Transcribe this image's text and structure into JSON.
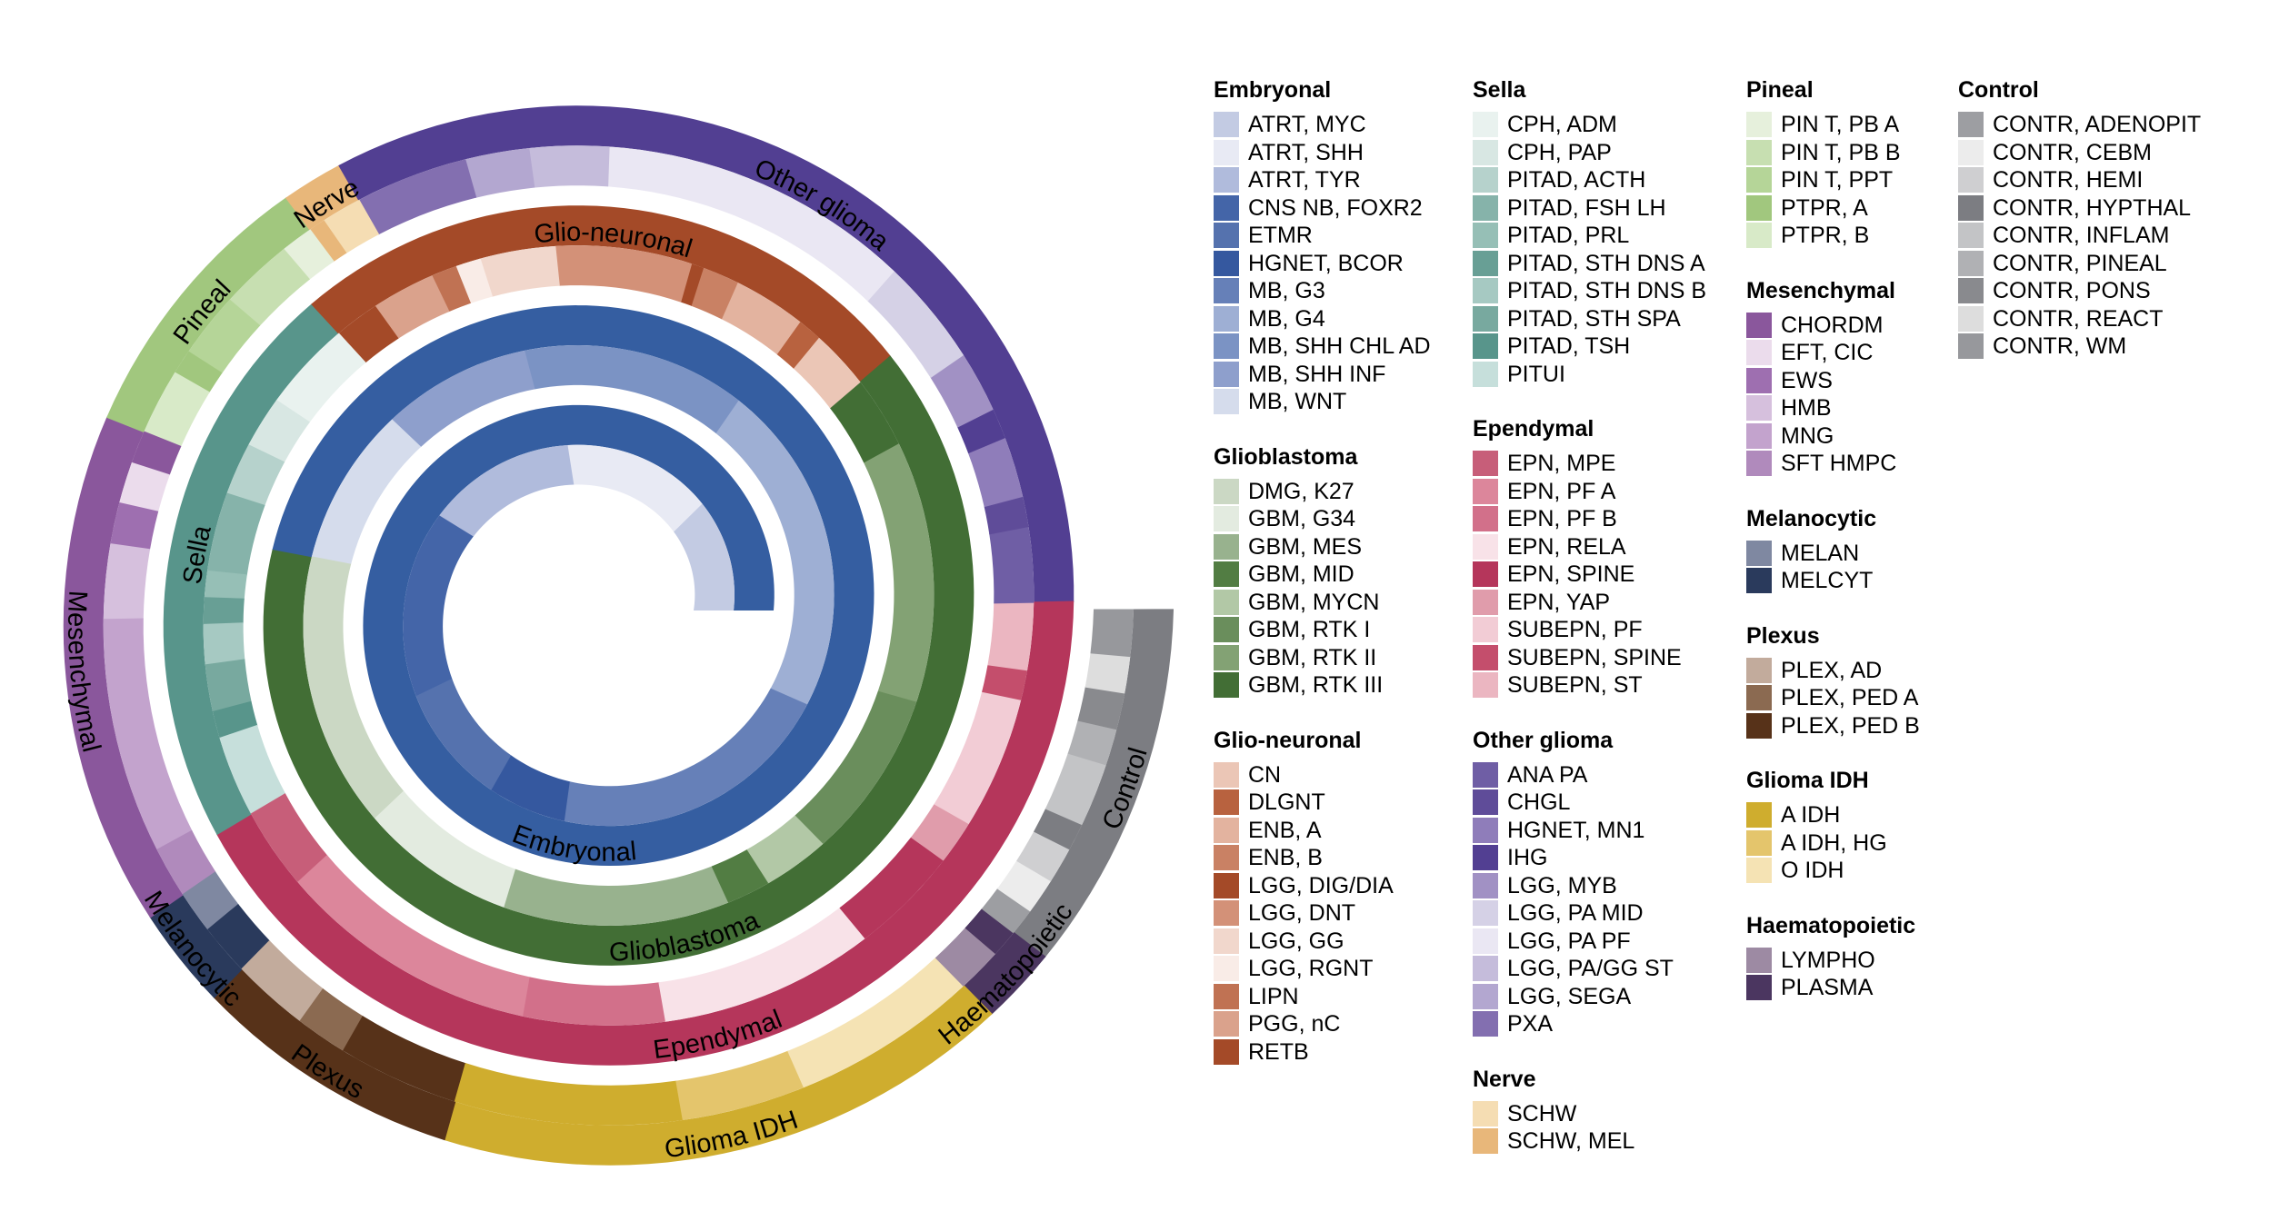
{
  "chart_data": {
    "type": "spiral-sunburst",
    "title": "",
    "direction": "counterclockwise from 3 o'clock, inner to outer",
    "total_turns": 4,
    "legend_placement": "right",
    "families": [
      {
        "name": "Embryonal",
        "color": "#355ea1",
        "subclasses": [
          {
            "name": "ATRT, MYC",
            "value": 45
          },
          {
            "name": "ATRT, SHH",
            "value": 55
          },
          {
            "name": "ATRT, TYR",
            "value": 50
          },
          {
            "name": "CNS NB, FOXR2",
            "value": 58
          },
          {
            "name": "ETMR",
            "value": 35
          },
          {
            "name": "HGNET, BCOR",
            "value": 22
          },
          {
            "name": "MB, G3",
            "value": 75
          },
          {
            "name": "MB, G4",
            "value": 80
          },
          {
            "name": "MB, SHH CHL AD",
            "value": 50
          },
          {
            "name": "MB, SHH INF",
            "value": 32
          },
          {
            "name": "MB, WNT",
            "value": 33
          }
        ]
      },
      {
        "name": "Glioblastoma",
        "color": "#426e35",
        "subclasses": [
          {
            "name": "DMG, K27",
            "value": 55
          },
          {
            "name": "GBM, G34",
            "value": 30
          },
          {
            "name": "GBM, MES",
            "value": 42
          },
          {
            "name": "GBM, MID",
            "value": 8
          },
          {
            "name": "GBM, MYCN",
            "value": 12
          },
          {
            "name": "GBM, RTK I",
            "value": 30
          },
          {
            "name": "GBM, RTK II",
            "value": 45
          },
          {
            "name": "GBM, RTK III",
            "value": 12
          }
        ]
      },
      {
        "name": "Glio-neuronal",
        "color": "#a44a28",
        "subclasses": [
          {
            "name": "CN",
            "value": 10
          },
          {
            "name": "DLGNT",
            "value": 4
          },
          {
            "name": "ENB, A",
            "value": 12
          },
          {
            "name": "ENB, B",
            "value": 6
          },
          {
            "name": "LGG, DIG/DIA",
            "value": 2
          },
          {
            "name": "LGG, DNT",
            "value": 22
          },
          {
            "name": "LGG, GG",
            "value": 12
          },
          {
            "name": "LGG, RGNT",
            "value": 4
          },
          {
            "name": "LIPN",
            "value": 4
          },
          {
            "name": "PGG, nC",
            "value": 10
          },
          {
            "name": "RETB",
            "value": 7
          }
        ]
      },
      {
        "name": "Sella",
        "color": "#58958b",
        "subclasses": [
          {
            "name": "CPH, ADM",
            "value": 14
          },
          {
            "name": "CPH, PAP",
            "value": 8
          },
          {
            "name": "PITAD, ACTH",
            "value": 8
          },
          {
            "name": "PITAD, FSH LH",
            "value": 12
          },
          {
            "name": "PITAD, PRL",
            "value": 4
          },
          {
            "name": "PITAD, STH DNS A",
            "value": 4
          },
          {
            "name": "PITAD, STH DNS B",
            "value": 6
          },
          {
            "name": "PITAD, STH SPA",
            "value": 7
          },
          {
            "name": "PITAD, TSH",
            "value": 4
          },
          {
            "name": "PITUI",
            "value": 12
          }
        ]
      },
      {
        "name": "Ependymal",
        "color": "#b5365b",
        "subclasses": [
          {
            "name": "EPN, MPE",
            "value": 12
          },
          {
            "name": "EPN, PF A",
            "value": 38
          },
          {
            "name": "EPN, PF B",
            "value": 20
          },
          {
            "name": "EPN, RELA",
            "value": 30
          },
          {
            "name": "EPN, SPINE",
            "value": 15
          },
          {
            "name": "EPN, YAP",
            "value": 6
          },
          {
            "name": "SUBEPN, PF",
            "value": 18
          },
          {
            "name": "SUBEPN, SPINE",
            "value": 4
          },
          {
            "name": "SUBEPN, ST",
            "value": 9
          }
        ]
      },
      {
        "name": "Other glioma",
        "color": "#523f92",
        "subclasses": [
          {
            "name": "ANA PA",
            "value": 10
          },
          {
            "name": "CHGL",
            "value": 4
          },
          {
            "name": "HGNET, MN1",
            "value": 8
          },
          {
            "name": "IHG",
            "value": 4
          },
          {
            "name": "LGG, MYB",
            "value": 8
          },
          {
            "name": "LGG, PA MID",
            "value": 14
          },
          {
            "name": "LGG, PA PF",
            "value": 40
          },
          {
            "name": "LGG, PA/GG ST",
            "value": 10
          },
          {
            "name": "LGG, SEGA",
            "value": 8
          },
          {
            "name": "PXA",
            "value": 14
          }
        ]
      },
      {
        "name": "Nerve",
        "color": "#e8b77a",
        "subclasses": [
          {
            "name": "SCHW",
            "value": 5
          },
          {
            "name": "SCHW, MEL",
            "value": 2
          }
        ]
      },
      {
        "name": "Pineal",
        "color": "#a1c77e",
        "subclasses": [
          {
            "name": "PIN T, PB A",
            "value": 4
          },
          {
            "name": "PIN T, PB B",
            "value": 9
          },
          {
            "name": "PIN T, PPT",
            "value": 8
          },
          {
            "name": "PTPR, A",
            "value": 3
          },
          {
            "name": "PTPR, B",
            "value": 8
          }
        ]
      },
      {
        "name": "Mesenchymal",
        "color": "#8a579c",
        "subclasses": [
          {
            "name": "CHORDM",
            "value": 4
          },
          {
            "name": "EFT, CIC",
            "value": 5
          },
          {
            "name": "EWS",
            "value": 5
          },
          {
            "name": "HMB",
            "value": 9
          },
          {
            "name": "MNG",
            "value": 28
          },
          {
            "name": "SFT HMPC",
            "value": 6
          }
        ]
      },
      {
        "name": "Melanocytic",
        "color": "#2a3a5c",
        "subclasses": [
          {
            "name": "MELAN",
            "value": 5
          },
          {
            "name": "MELCYT",
            "value": 6
          }
        ]
      },
      {
        "name": "Plexus",
        "color": "#573219",
        "subclasses": [
          {
            "name": "PLEX, AD",
            "value": 9
          },
          {
            "name": "PLEX, PED A",
            "value": 6
          },
          {
            "name": "PLEX, PED B",
            "value": 14
          }
        ]
      },
      {
        "name": "Glioma IDH",
        "color": "#cfad2e",
        "subclasses": [
          {
            "name": "A IDH",
            "value": 26
          },
          {
            "name": "A IDH, HG",
            "value": 14
          },
          {
            "name": "O IDH",
            "value": 21
          }
        ]
      },
      {
        "name": "Haematopoietic",
        "color": "#4b3660",
        "subclasses": [
          {
            "name": "LYMPHO",
            "value": 5
          },
          {
            "name": "PLASMA",
            "value": 3
          }
        ]
      },
      {
        "name": "Control",
        "color": "#7c7d82",
        "subclasses": [
          {
            "name": "CONTR, ADENOPIT",
            "value": 3
          },
          {
            "name": "CONTR, CEBM",
            "value": 4
          },
          {
            "name": "CONTR, HEMI",
            "value": 4
          },
          {
            "name": "CONTR, HYPTHAL",
            "value": 3
          },
          {
            "name": "CONTR, INFLAM",
            "value": 7
          },
          {
            "name": "CONTR, PINEAL",
            "value": 4
          },
          {
            "name": "CONTR, PONS",
            "value": 4
          },
          {
            "name": "CONTR, REACT",
            "value": 4
          },
          {
            "name": "CONTR, WM",
            "value": 5
          }
        ]
      }
    ]
  },
  "legend": {
    "columns": [
      [
        {
          "title": "Embryonal",
          "items": [
            {
              "label": "ATRT, MYC",
              "color": "#c3cbe3"
            },
            {
              "label": "ATRT, SHH",
              "color": "#e8eaf4"
            },
            {
              "label": "ATRT, TYR",
              "color": "#b0bbdc"
            },
            {
              "label": "CNS NB, FOXR2",
              "color": "#4465a8"
            },
            {
              "label": "ETMR",
              "color": "#5572ae"
            },
            {
              "label": "HGNET, BCOR",
              "color": "#35589f"
            },
            {
              "label": "MB, G3",
              "color": "#6680b8"
            },
            {
              "label": "MB, G4",
              "color": "#9eafd4"
            },
            {
              "label": "MB, SHH CHL AD",
              "color": "#7b93c4"
            },
            {
              "label": "MB, SHH INF",
              "color": "#8e9fcc"
            },
            {
              "label": "MB, WNT",
              "color": "#d5dcec"
            }
          ]
        },
        {
          "title": "Glioblastoma",
          "items": [
            {
              "label": "DMG, K27",
              "color": "#cbd8c4"
            },
            {
              "label": "GBM, G34",
              "color": "#e3ebe0"
            },
            {
              "label": "GBM, MES",
              "color": "#98b28e"
            },
            {
              "label": "GBM, MID",
              "color": "#527d43"
            },
            {
              "label": "GBM, MYCN",
              "color": "#b2c8a6"
            },
            {
              "label": "GBM, RTK I",
              "color": "#6a8e5c"
            },
            {
              "label": "GBM, RTK II",
              "color": "#83a274"
            },
            {
              "label": "GBM, RTK III",
              "color": "#426e35"
            }
          ]
        },
        {
          "title": "Glio-neuronal",
          "items": [
            {
              "label": "CN",
              "color": "#ebc6b6"
            },
            {
              "label": "DLGNT",
              "color": "#b8623f"
            },
            {
              "label": "ENB, A",
              "color": "#e3b39f"
            },
            {
              "label": "ENB, B",
              "color": "#c98164"
            },
            {
              "label": "LGG, DIG/DIA",
              "color": "#a44a28"
            },
            {
              "label": "LGG, DNT",
              "color": "#d39178"
            },
            {
              "label": "LGG, GG",
              "color": "#f1d7cc"
            },
            {
              "label": "LGG, RGNT",
              "color": "#f9ece7"
            },
            {
              "label": "LIPN",
              "color": "#c07253"
            },
            {
              "label": "PGG, nC",
              "color": "#daa28c"
            },
            {
              "label": "RETB",
              "color": "#a44a28"
            }
          ]
        }
      ],
      [
        {
          "title": "Sella",
          "items": [
            {
              "label": "CPH, ADM",
              "color": "#e9f2ef"
            },
            {
              "label": "CPH, PAP",
              "color": "#d8e7e3"
            },
            {
              "label": "PITAD, ACTH",
              "color": "#b6d2cc"
            },
            {
              "label": "PITAD, FSH LH",
              "color": "#86b3aa"
            },
            {
              "label": "PITAD, PRL",
              "color": "#96bfb6"
            },
            {
              "label": "PITAD, STH DNS A",
              "color": "#689f95"
            },
            {
              "label": "PITAD, STH DNS B",
              "color": "#a6c9c2"
            },
            {
              "label": "PITAD, STH SPA",
              "color": "#78a99f"
            },
            {
              "label": "PITAD, TSH",
              "color": "#58958b"
            },
            {
              "label": "PITUI",
              "color": "#c6dfdb"
            }
          ]
        },
        {
          "title": "Ependymal",
          "items": [
            {
              "label": "EPN, MPE",
              "color": "#c75e79"
            },
            {
              "label": "EPN, PF A",
              "color": "#dc869b"
            },
            {
              "label": "EPN, PF B",
              "color": "#d2708a"
            },
            {
              "label": "EPN, RELA",
              "color": "#f8e2e8"
            },
            {
              "label": "EPN, SPINE",
              "color": "#b5365b"
            },
            {
              "label": "EPN, YAP",
              "color": "#e09cab"
            },
            {
              "label": "SUBEPN, PF",
              "color": "#f2ccd5"
            },
            {
              "label": "SUBEPN, SPINE",
              "color": "#c44e6c"
            },
            {
              "label": "SUBEPN, ST",
              "color": "#ebb6c1"
            }
          ]
        },
        {
          "title": "Other glioma",
          "items": [
            {
              "label": "ANA PA",
              "color": "#6f5ea5"
            },
            {
              "label": "CHGL",
              "color": "#5f4c99"
            },
            {
              "label": "HGNET, MN1",
              "color": "#8f7dba"
            },
            {
              "label": "IHG",
              "color": "#523f92"
            },
            {
              "label": "LGG, MYB",
              "color": "#a191c4"
            },
            {
              "label": "LGG, PA MID",
              "color": "#d5d1e6"
            },
            {
              "label": "LGG, PA PF",
              "color": "#eae7f3"
            },
            {
              "label": "LGG, PA/GG ST",
              "color": "#c5bcdb"
            },
            {
              "label": "LGG, SEGA",
              "color": "#b3a7d0"
            },
            {
              "label": "PXA",
              "color": "#836fb0"
            }
          ]
        },
        {
          "title": "Nerve",
          "items": [
            {
              "label": "SCHW",
              "color": "#f5ddb3"
            },
            {
              "label": "SCHW, MEL",
              "color": "#e8b77a"
            }
          ]
        }
      ],
      [
        {
          "title": "Pineal",
          "items": [
            {
              "label": "PIN T, PB A",
              "color": "#e6f0dc"
            },
            {
              "label": "PIN T, PB B",
              "color": "#c7dfb1"
            },
            {
              "label": "PIN T, PPT",
              "color": "#b5d598"
            },
            {
              "label": "PTPR, A",
              "color": "#a1c77e"
            },
            {
              "label": "PTPR, B",
              "color": "#d8eac8"
            }
          ]
        },
        {
          "title": "Mesenchymal",
          "items": [
            {
              "label": "CHORDM",
              "color": "#8a579c"
            },
            {
              "label": "EFT, CIC",
              "color": "#ebdcec"
            },
            {
              "label": "EWS",
              "color": "#9e6fb0"
            },
            {
              "label": "HMB",
              "color": "#d6c0dd"
            },
            {
              "label": "MNG",
              "color": "#c3a3cd"
            },
            {
              "label": "SFT HMPC",
              "color": "#b08abc"
            }
          ]
        },
        {
          "title": "Melanocytic",
          "items": [
            {
              "label": "MELAN",
              "color": "#7f88a1"
            },
            {
              "label": "MELCYT",
              "color": "#2a3a5c"
            }
          ]
        },
        {
          "title": "Plexus",
          "items": [
            {
              "label": "PLEX, AD",
              "color": "#c2ab9c"
            },
            {
              "label": "PLEX, PED A",
              "color": "#8b6a51"
            },
            {
              "label": "PLEX, PED B",
              "color": "#573219"
            }
          ]
        },
        {
          "title": "Glioma IDH",
          "items": [
            {
              "label": "A IDH",
              "color": "#cfad2e"
            },
            {
              "label": "A IDH, HG",
              "color": "#e4c56c"
            },
            {
              "label": "O IDH",
              "color": "#f5e3b4"
            }
          ]
        },
        {
          "title": "Haematopoietic",
          "items": [
            {
              "label": "LYMPHO",
              "color": "#9d8aa3"
            },
            {
              "label": "PLASMA",
              "color": "#4b3660"
            }
          ]
        }
      ],
      [
        {
          "title": "Control",
          "items": [
            {
              "label": "CONTR, ADENOPIT",
              "color": "#9d9ea2"
            },
            {
              "label": "CONTR, CEBM",
              "color": "#ececec"
            },
            {
              "label": "CONTR, HEMI",
              "color": "#cfcfd1"
            },
            {
              "label": "CONTR, HYPTHAL",
              "color": "#7c7d82"
            },
            {
              "label": "CONTR, INFLAM",
              "color": "#c3c4c6"
            },
            {
              "label": "CONTR, PINEAL",
              "color": "#b0b1b4"
            },
            {
              "label": "CONTR, PONS",
              "color": "#898a8e"
            },
            {
              "label": "CONTR, REACT",
              "color": "#dddddd"
            },
            {
              "label": "CONTR, WM",
              "color": "#97989c"
            }
          ]
        }
      ]
    ]
  }
}
